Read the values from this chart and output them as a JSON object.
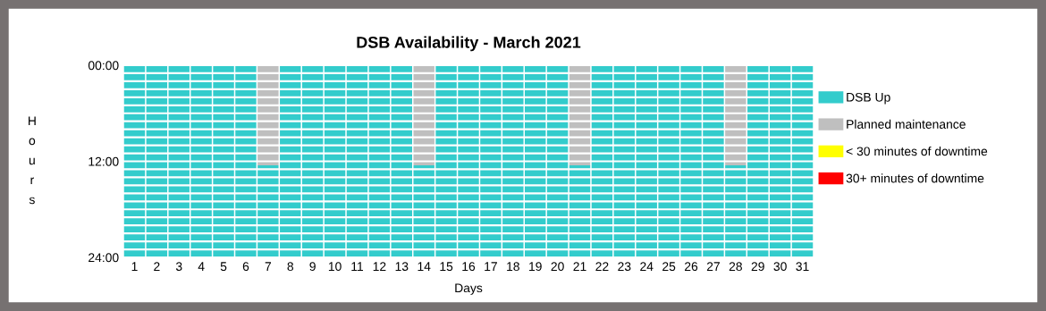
{
  "chart_data": {
    "type": "bar",
    "stacked": true,
    "title": "DSB Availability - March 2021",
    "xlabel": "Days",
    "ylabel": "Hours",
    "categories": [
      "1",
      "2",
      "3",
      "4",
      "5",
      "6",
      "7",
      "8",
      "9",
      "10",
      "11",
      "12",
      "13",
      "14",
      "15",
      "16",
      "17",
      "18",
      "19",
      "20",
      "21",
      "22",
      "23",
      "24",
      "25",
      "26",
      "27",
      "28",
      "29",
      "30",
      "31"
    ],
    "series": [
      {
        "name": "DSB Up",
        "color": "#33cccc",
        "values": [
          24,
          24,
          24,
          24,
          24,
          24,
          0,
          24,
          24,
          24,
          24,
          24,
          24,
          0,
          24,
          24,
          24,
          24,
          24,
          24,
          0,
          24,
          24,
          24,
          24,
          24,
          24,
          0,
          24,
          24,
          24
        ]
      },
      {
        "name": "Planned maintenance",
        "color": "#bfbfbf",
        "values": [
          0,
          0,
          0,
          0,
          0,
          0,
          12.5,
          0,
          0,
          0,
          0,
          0,
          0,
          12.5,
          0,
          0,
          0,
          0,
          0,
          0,
          12.5,
          0,
          0,
          0,
          0,
          0,
          0,
          12.5,
          0,
          0,
          0
        ]
      },
      {
        "name": "< 30 minutes of downtime",
        "color": "#ffff00",
        "values": [
          0,
          0,
          0,
          0,
          0,
          0,
          0,
          0,
          0,
          0,
          0,
          0,
          0,
          0,
          0,
          0,
          0,
          0,
          0,
          0,
          0,
          0,
          0,
          0,
          0,
          0,
          0,
          0,
          0,
          0,
          0
        ]
      },
      {
        "name": "30+ minutes of downtime",
        "color": "#ff0000",
        "values": [
          0,
          0,
          0,
          0,
          0,
          0,
          0,
          0,
          0,
          0,
          0,
          0,
          0,
          0,
          0,
          0,
          0,
          0,
          0,
          0,
          0,
          0,
          0,
          0,
          0,
          0,
          0,
          0,
          0,
          0,
          0
        ]
      },
      {
        "color": "#33cccc",
        "values": [
          0,
          0,
          0,
          0,
          0,
          0,
          11.5,
          0,
          0,
          0,
          0,
          0,
          0,
          11.5,
          0,
          0,
          0,
          0,
          0,
          0,
          11.5,
          0,
          0,
          0,
          0,
          0,
          0,
          11.5,
          0,
          0,
          0
        ]
      }
    ],
    "ylim": [
      24,
      0
    ],
    "yticks": [
      {
        "value": 0,
        "label": "00:00"
      },
      {
        "value": 1,
        "label": null
      },
      {
        "value": 2,
        "label": null
      },
      {
        "value": 3,
        "label": null
      },
      {
        "value": 4,
        "label": null
      },
      {
        "value": 5,
        "label": null
      },
      {
        "value": 6,
        "label": null
      },
      {
        "value": 7,
        "label": null
      },
      {
        "value": 8,
        "label": null
      },
      {
        "value": 9,
        "label": null
      },
      {
        "value": 10,
        "label": null
      },
      {
        "value": 11,
        "label": null
      },
      {
        "value": 12,
        "label": "12:00"
      },
      {
        "value": 13,
        "label": null
      },
      {
        "value": 14,
        "label": null
      },
      {
        "value": 15,
        "label": null
      },
      {
        "value": 16,
        "label": null
      },
      {
        "value": 17,
        "label": null
      },
      {
        "value": 18,
        "label": null
      },
      {
        "value": 19,
        "label": null
      },
      {
        "value": 20,
        "label": null
      },
      {
        "value": 21,
        "label": null
      },
      {
        "value": 22,
        "label": null
      },
      {
        "value": 23,
        "label": null
      },
      {
        "value": 24,
        "label": "24:00"
      }
    ],
    "grid": "y",
    "legend": "right"
  }
}
